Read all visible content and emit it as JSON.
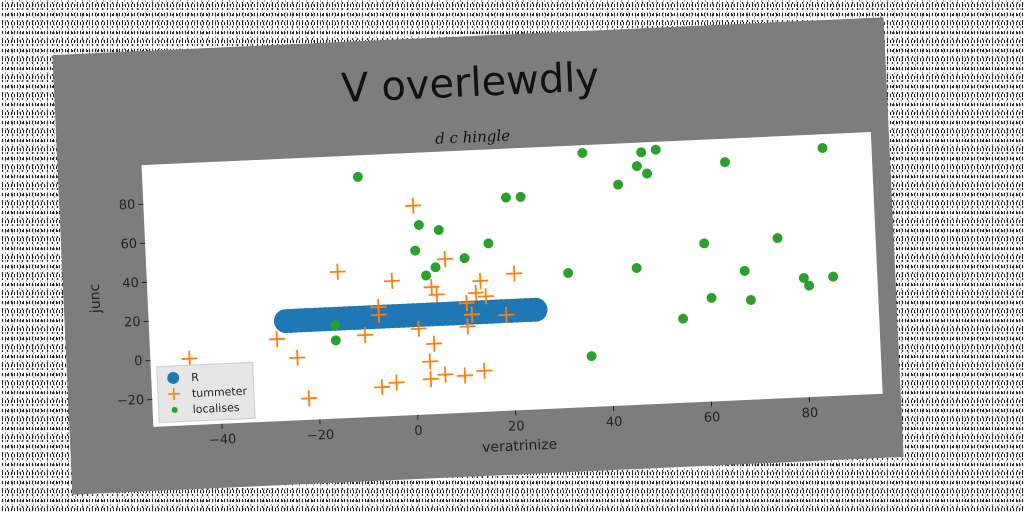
{
  "chart_data": {
    "type": "scatter",
    "title": "V overlewdly",
    "subtitle": "d c hingle",
    "xlabel": "veratrinize",
    "ylabel": "junc",
    "xlim": [
      -54,
      95
    ],
    "ylim": [
      -34,
      100
    ],
    "xticks": [
      -40,
      -20,
      0,
      20,
      40,
      60,
      80
    ],
    "yticks": [
      -20,
      0,
      20,
      40,
      60,
      80
    ],
    "grid": false,
    "legend_position": "lower-left",
    "series": [
      {
        "name": "R",
        "marker": "circle-large",
        "color": "#1f77b4",
        "points": [
          [
            -26,
            17
          ],
          [
            -25,
            17
          ],
          [
            -24,
            17
          ],
          [
            -23,
            17
          ],
          [
            -22,
            17
          ],
          [
            -21,
            17
          ],
          [
            -20,
            17
          ],
          [
            -19,
            17
          ],
          [
            -18,
            17
          ],
          [
            -17,
            17
          ],
          [
            -16,
            17
          ],
          [
            -15,
            17
          ],
          [
            -14,
            17
          ],
          [
            -13,
            17
          ],
          [
            -12,
            17
          ],
          [
            -11,
            17
          ],
          [
            -10,
            17
          ],
          [
            -9,
            17
          ],
          [
            -8,
            17
          ],
          [
            -7,
            17
          ],
          [
            -6,
            17
          ],
          [
            -5,
            17
          ],
          [
            -4,
            17
          ],
          [
            -3,
            17
          ],
          [
            -2,
            17
          ],
          [
            -1,
            17
          ],
          [
            0,
            17
          ],
          [
            1,
            17
          ],
          [
            2,
            17
          ],
          [
            3,
            17
          ],
          [
            4,
            17
          ],
          [
            5,
            17
          ],
          [
            6,
            17
          ],
          [
            7,
            17
          ],
          [
            8,
            17
          ],
          [
            9,
            17
          ],
          [
            10,
            17
          ],
          [
            11,
            17
          ],
          [
            12,
            17
          ],
          [
            13,
            17
          ],
          [
            14,
            17
          ],
          [
            15,
            17
          ],
          [
            16,
            17
          ],
          [
            17,
            17
          ],
          [
            18,
            17
          ],
          [
            19,
            17
          ],
          [
            20,
            17
          ],
          [
            21,
            17
          ],
          [
            22,
            17
          ],
          [
            23,
            17
          ],
          [
            24,
            17
          ],
          [
            25,
            17
          ]
        ]
      },
      {
        "name": "tummeter",
        "marker": "plus",
        "color": "#ff7f0e",
        "points": [
          [
            -46,
            0
          ],
          [
            -28,
            8
          ],
          [
            -24,
            -2
          ],
          [
            -22,
            -23
          ],
          [
            -15,
            41
          ],
          [
            -10,
            8
          ],
          [
            -7,
            22
          ],
          [
            -7,
            18
          ],
          [
            -7,
            -19
          ],
          [
            -4,
            -17
          ],
          [
            -4,
            35
          ],
          [
            1,
            73
          ],
          [
            1,
            10
          ],
          [
            3,
            -7
          ],
          [
            3,
            -16
          ],
          [
            4,
            2
          ],
          [
            4,
            31
          ],
          [
            5,
            27
          ],
          [
            6,
            -14
          ],
          [
            7,
            45
          ],
          [
            10,
            -15
          ],
          [
            11,
            22
          ],
          [
            11,
            10
          ],
          [
            12,
            16
          ],
          [
            13,
            27
          ],
          [
            14,
            33
          ],
          [
            14,
            -13
          ],
          [
            15,
            25
          ],
          [
            19,
            15
          ],
          [
            21,
            36
          ]
        ]
      },
      {
        "name": "localises",
        "marker": "circle-small",
        "color": "#2ca02c",
        "points": [
          [
            -10,
            89
          ],
          [
            -16,
            14
          ],
          [
            -16,
            6
          ],
          [
            1,
            50
          ],
          [
            2,
            63
          ],
          [
            3,
            37
          ],
          [
            5,
            41
          ],
          [
            6,
            60
          ],
          [
            11,
            45
          ],
          [
            16,
            52
          ],
          [
            20,
            75
          ],
          [
            23,
            75
          ],
          [
            32,
            35
          ],
          [
            36,
            96
          ],
          [
            36,
            -8
          ],
          [
            43,
            79
          ],
          [
            46,
            36
          ],
          [
            47,
            88
          ],
          [
            48,
            95
          ],
          [
            49,
            84
          ],
          [
            51,
            96
          ],
          [
            55,
            9
          ],
          [
            60,
            47
          ],
          [
            61,
            19
          ],
          [
            65,
            88
          ],
          [
            68,
            32
          ],
          [
            69,
            17
          ],
          [
            75,
            48
          ],
          [
            80,
            27
          ],
          [
            81,
            23
          ],
          [
            85,
            93
          ],
          [
            86,
            27
          ]
        ]
      }
    ]
  }
}
